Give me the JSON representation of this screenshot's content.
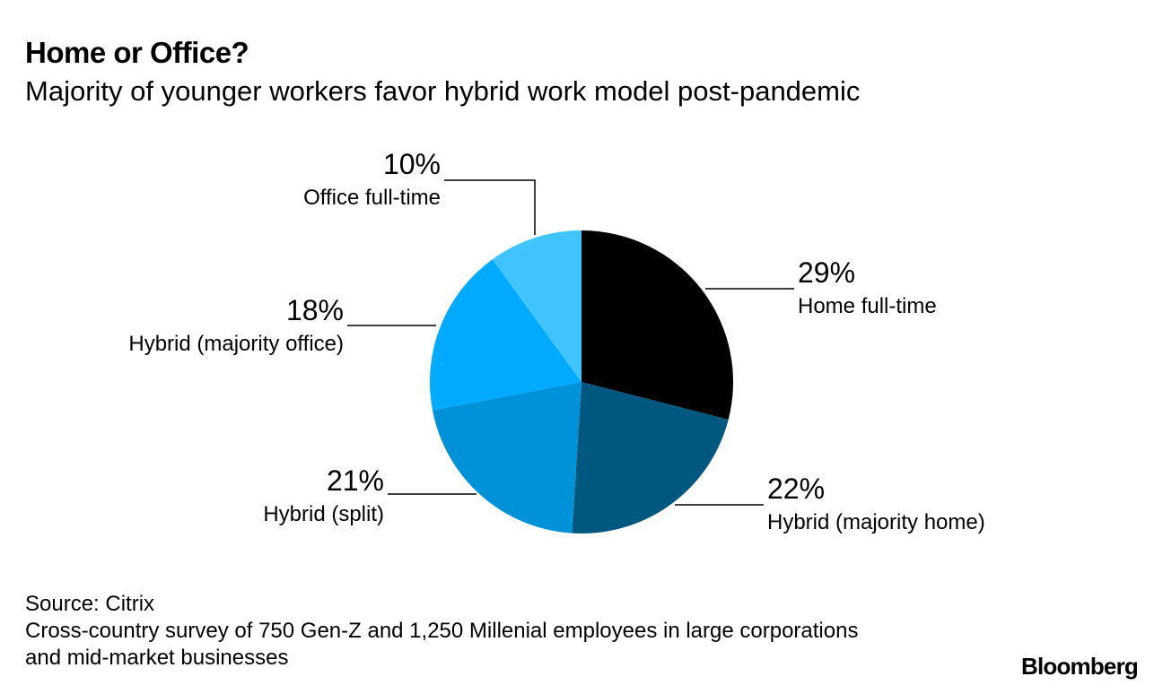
{
  "title": "Home or Office?",
  "subtitle": "Majority of younger workers favor hybrid work model post-pandemic",
  "chart_data": {
    "type": "pie",
    "title": "Home or Office?",
    "subtitle": "Majority of younger workers favor hybrid work model post-pandemic",
    "slices": [
      {
        "label": "Home full-time",
        "value": 29,
        "value_label": "29%",
        "color": "#000000"
      },
      {
        "label": "Hybrid (majority home)",
        "value": 22,
        "value_label": "22%",
        "color": "#00577f"
      },
      {
        "label": "Hybrid (split)",
        "value": 21,
        "value_label": "21%",
        "color": "#0092d8"
      },
      {
        "label": "Hybrid (majority office)",
        "value": 18,
        "value_label": "18%",
        "color": "#00aaff"
      },
      {
        "label": "Office full-time",
        "value": 10,
        "value_label": "10%",
        "color": "#40c4ff"
      }
    ],
    "start": "12 o'clock",
    "direction": "clockwise",
    "labels": "outside with leader lines"
  },
  "footer": {
    "source": "Source: Citrix",
    "note": "Cross-country survey of 750 Gen-Z and 1,250 Millenial employees in large corporations and mid-market businesses",
    "brand": "Bloomberg"
  }
}
